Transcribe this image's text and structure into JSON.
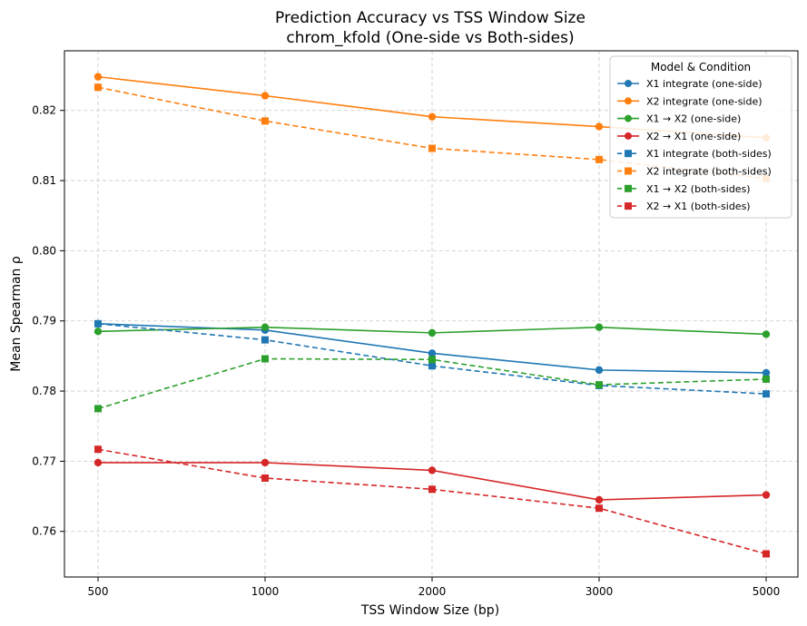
{
  "chart_data": {
    "type": "line",
    "title": "Prediction Accuracy vs TSS Window Size",
    "subtitle": "chrom_kfold (One-side vs Both-sides)",
    "xlabel": "TSS Window Size (bp)",
    "ylabel": "Mean Spearman ρ",
    "categories": [
      "500",
      "1000",
      "2000",
      "3000",
      "5000"
    ],
    "ylim": [
      0.7535,
      0.8285
    ],
    "yticks": [
      "0.76",
      "0.77",
      "0.78",
      "0.79",
      "0.80",
      "0.81",
      "0.82"
    ],
    "yticks_values": [
      0.76,
      0.77,
      0.78,
      0.79,
      0.8,
      0.81,
      0.82
    ],
    "grid": true,
    "legend": {
      "title": "Model & Condition",
      "placement": "top-right"
    },
    "series": [
      {
        "name": "X1 integrate (one-side)",
        "color": "#1f77b4",
        "marker": "circle",
        "dash": "solid",
        "values": [
          0.7896,
          0.7887,
          0.7854,
          0.783,
          0.7826
        ]
      },
      {
        "name": "X2 integrate (one-side)",
        "color": "#ff7f0e",
        "marker": "circle",
        "dash": "solid",
        "values": [
          0.8248,
          0.8221,
          0.8191,
          0.8177,
          0.8161
        ]
      },
      {
        "name": "X1 → X2 (one-side)",
        "color": "#2ca02c",
        "marker": "circle",
        "dash": "solid",
        "values": [
          0.7885,
          0.7891,
          0.7883,
          0.7891,
          0.7881
        ]
      },
      {
        "name": "X2 → X1 (one-side)",
        "color": "#d62728",
        "marker": "circle",
        "dash": "solid",
        "values": [
          0.7698,
          0.7698,
          0.7687,
          0.7645,
          0.7652
        ]
      },
      {
        "name": "X1 integrate (both-sides)",
        "color": "#1f77b4",
        "marker": "square",
        "dash": "dashed",
        "values": [
          0.7896,
          0.7873,
          0.7836,
          0.7808,
          0.7796
        ]
      },
      {
        "name": "X2 integrate (both-sides)",
        "color": "#ff7f0e",
        "marker": "square",
        "dash": "dashed",
        "values": [
          0.8233,
          0.8185,
          0.8146,
          0.813,
          0.8103
        ]
      },
      {
        "name": "X1 → X2 (both-sides)",
        "color": "#2ca02c",
        "marker": "square",
        "dash": "dashed",
        "values": [
          0.7775,
          0.7846,
          0.7845,
          0.7809,
          0.7817
        ]
      },
      {
        "name": "X2 → X1 (both-sides)",
        "color": "#d62728",
        "marker": "square",
        "dash": "dashed",
        "values": [
          0.7717,
          0.7676,
          0.766,
          0.7633,
          0.7568
        ]
      }
    ]
  }
}
